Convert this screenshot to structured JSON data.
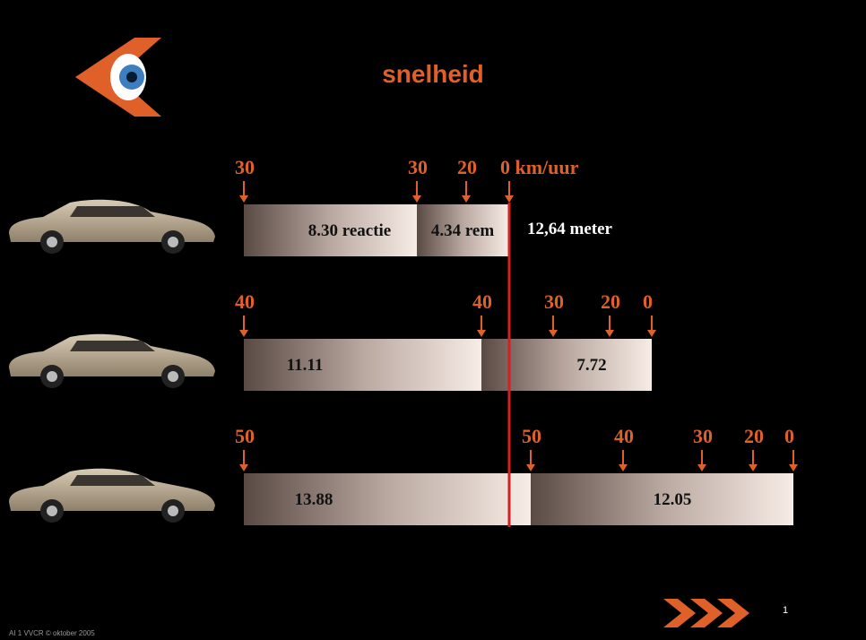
{
  "title": "snelheid",
  "rows": [
    {
      "speeds": [
        "30",
        "30",
        "20",
        "0 km/uur"
      ],
      "segments": [
        "8.30 reactie",
        "4.34 rem"
      ],
      "note": "12,64 meter"
    },
    {
      "speeds": [
        "40",
        "40",
        "30",
        "20",
        "0"
      ],
      "segments": [
        "11.11",
        "7.72"
      ]
    },
    {
      "speeds": [
        "50",
        "50",
        "40",
        "30",
        "20",
        "0"
      ],
      "segments": [
        "13.88",
        "12.05"
      ]
    }
  ],
  "footer": "AI 1 VVCR © oktober 2005",
  "page_number": "1"
}
